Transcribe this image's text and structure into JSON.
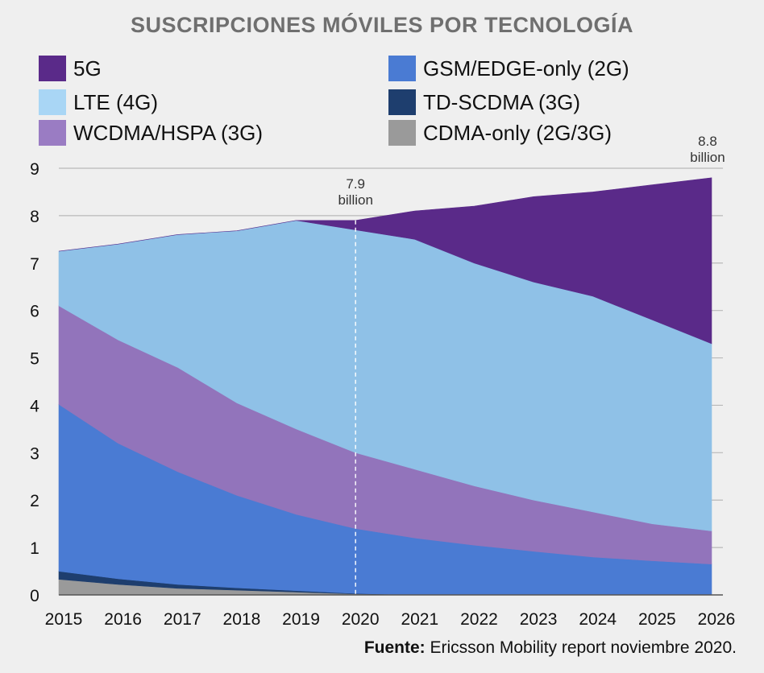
{
  "chart_data": {
    "type": "area",
    "title": "SUSCRIPCIONES MÓVILES POR TECNOLOGÍA",
    "xlabel": "",
    "ylabel": "",
    "x": [
      2015,
      2016,
      2017,
      2018,
      2019,
      2020,
      2021,
      2022,
      2023,
      2024,
      2025,
      2026
    ],
    "ylim": [
      0,
      9
    ],
    "yticks": [
      0,
      1,
      2,
      3,
      4,
      5,
      6,
      7,
      8,
      9
    ],
    "series": [
      {
        "name": "CDMA-only (2G/3G)",
        "color": "#9a9a9a",
        "values": [
          0.33,
          0.22,
          0.14,
          0.1,
          0.06,
          0.02,
          0.0,
          0.0,
          0.0,
          0.0,
          0.0,
          0.0
        ]
      },
      {
        "name": "TD-SCDMA (3G)",
        "color": "#1e3e6e",
        "values": [
          0.17,
          0.12,
          0.08,
          0.05,
          0.03,
          0.01,
          0.0,
          0.0,
          0.0,
          0.0,
          0.0,
          0.0
        ]
      },
      {
        "name": "GSM/EDGE-only (2G)",
        "color": "#4a7bd3",
        "values": [
          3.52,
          2.86,
          2.38,
          1.95,
          1.61,
          1.37,
          1.2,
          1.05,
          0.92,
          0.8,
          0.72,
          0.65
        ]
      },
      {
        "name": "WCDMA/HSPA (3G)",
        "color": "#9274bb",
        "values": [
          2.08,
          2.18,
          2.2,
          1.95,
          1.8,
          1.6,
          1.45,
          1.25,
          1.08,
          0.95,
          0.78,
          0.7
        ]
      },
      {
        "name": "LTE (4G)",
        "color": "#8fc1e7",
        "values": [
          1.15,
          2.02,
          2.8,
          3.63,
          4.4,
          4.7,
          4.85,
          4.7,
          4.6,
          4.55,
          4.3,
          3.95
        ]
      },
      {
        "name": "5G",
        "color": "#5a2a89",
        "values": [
          0.0,
          0.0,
          0.0,
          0.0,
          0.0,
          0.2,
          0.6,
          1.2,
          1.8,
          2.2,
          2.85,
          3.5
        ]
      }
    ],
    "annotations": [
      {
        "x": 2020,
        "value": 7.9,
        "line1": "7.9",
        "line2": "billion",
        "dashed_marker": true
      },
      {
        "x": 2026,
        "value": 8.8,
        "line1": "8.8",
        "line2": "billion"
      }
    ],
    "legend": [
      {
        "label": "5G",
        "color": "#5a2a89"
      },
      {
        "label": "LTE (4G)",
        "color": "#a9d6f5"
      },
      {
        "label": "WCDMA/HSPA (3G)",
        "color": "#9a7cc3"
      },
      {
        "label": "GSM/EDGE-only (2G)",
        "color": "#4a7bd3"
      },
      {
        "label": "TD-SCDMA (3G)",
        "color": "#1e3e6e"
      },
      {
        "label": "CDMA-only (2G/3G)",
        "color": "#9a9a9a"
      }
    ],
    "legend_position": "top",
    "grid": true
  },
  "footer": {
    "label": "Fuente:",
    "text": " Ericsson Mobility report noviembre 2020."
  }
}
